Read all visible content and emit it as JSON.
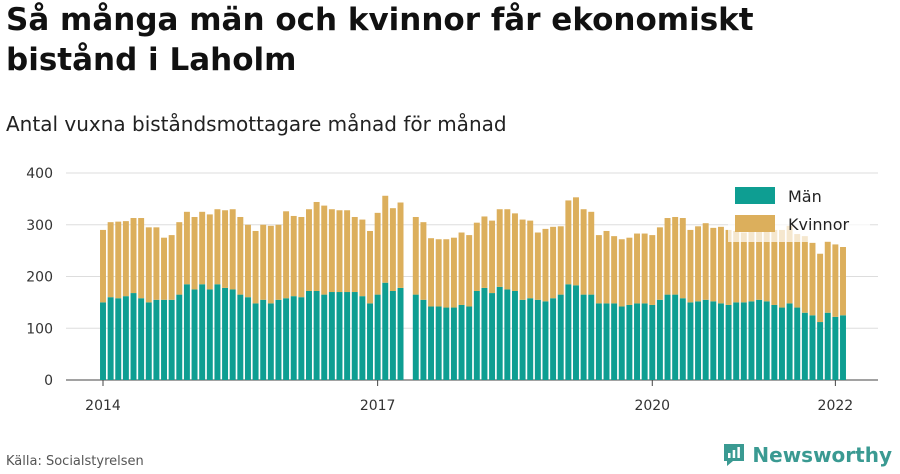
{
  "header": {
    "title": "Så många män och kvinnor får ekonomiskt bistånd i Laholm",
    "subtitle": "Antal vuxna biståndsmottagare månad för månad"
  },
  "footer": {
    "source": "Källa: Socialstyrelsen",
    "brand": "Newsworthy"
  },
  "colors": {
    "men": "#0e9e92",
    "women": "#dcaf5c",
    "grid": "#dddddd",
    "axis": "#444444",
    "brand": "#3a9a92"
  },
  "chart_data": {
    "type": "bar",
    "stacked": true,
    "ylim": [
      0,
      400
    ],
    "yticks": [
      0,
      100,
      200,
      300,
      400
    ],
    "xticks": [
      "2014",
      "2017",
      "2020",
      "2022"
    ],
    "legend": {
      "placement": "top-right",
      "entries": [
        "Män",
        "Kvinnor"
      ]
    },
    "series": [
      {
        "name": "Män",
        "values": [
          150,
          160,
          158,
          162,
          168,
          158,
          150,
          155,
          155,
          155,
          165,
          185,
          175,
          185,
          175,
          185,
          178,
          175,
          165,
          160,
          148,
          155,
          148,
          155,
          158,
          162,
          160,
          172,
          172,
          165,
          170,
          170,
          170,
          170,
          162,
          148,
          165,
          188,
          172,
          178,
          null,
          165,
          155,
          142,
          142,
          140,
          140,
          145,
          142,
          172,
          178,
          168,
          180,
          175,
          172,
          155,
          158,
          155,
          152,
          158,
          165,
          185,
          183,
          165,
          165,
          148,
          148,
          148,
          142,
          145,
          148,
          148,
          145,
          155,
          165,
          165,
          158,
          150,
          152,
          155,
          152,
          148,
          145,
          150,
          150,
          152,
          155,
          152,
          145,
          140,
          148,
          140,
          130,
          125,
          112,
          130,
          122,
          125
        ]
      },
      {
        "name": "Kvinnor",
        "values": [
          140,
          145,
          148,
          145,
          145,
          155,
          145,
          140,
          120,
          125,
          140,
          140,
          140,
          140,
          145,
          145,
          150,
          155,
          150,
          140,
          140,
          145,
          150,
          145,
          168,
          155,
          155,
          158,
          172,
          172,
          160,
          158,
          158,
          145,
          148,
          140,
          158,
          168,
          160,
          165,
          null,
          150,
          150,
          132,
          130,
          132,
          135,
          140,
          138,
          132,
          138,
          140,
          150,
          155,
          150,
          155,
          150,
          130,
          140,
          138,
          132,
          162,
          170,
          165,
          160,
          132,
          140,
          130,
          130,
          130,
          135,
          135,
          135,
          140,
          148,
          150,
          155,
          140,
          145,
          148,
          142,
          148,
          145,
          138,
          135,
          135,
          135,
          135,
          145,
          150,
          150,
          142,
          148,
          140,
          132,
          138,
          140,
          132
        ]
      }
    ]
  }
}
